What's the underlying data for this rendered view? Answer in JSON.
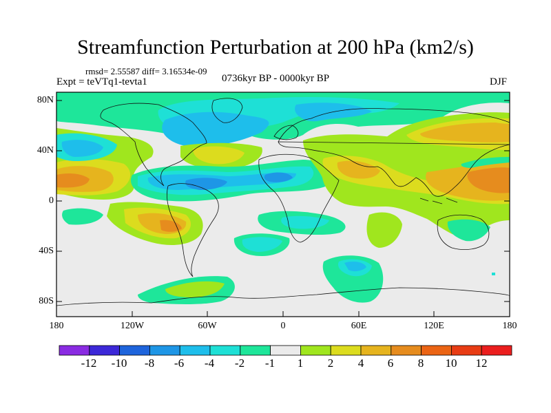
{
  "title": "Streamfunction Perturbation at 200 hPa (km2/s)",
  "stats": "rmsd= 2.55587 diff= 3.16534e-09",
  "expt": "Expt = teVTq1-tevta1",
  "period": "0736kyr BP - 0000kyr BP",
  "season": "DJF",
  "lat_labels": [
    "80N",
    "40N",
    "0",
    "40S",
    "80S"
  ],
  "lon_labels": [
    "180",
    "120W",
    "60W",
    "0",
    "60E",
    "120E",
    "180"
  ],
  "colorbar": {
    "labels": [
      "-12",
      "-10",
      "-8",
      "-6",
      "-4",
      "-2",
      "-1",
      "1",
      "2",
      "4",
      "6",
      "8",
      "10",
      "12"
    ],
    "colors": [
      "#8a2be2",
      "#3c28d8",
      "#1e64dc",
      "#1e96e6",
      "#1ebeeb",
      "#1ee0d6",
      "#1ee69a",
      "#ebebeb",
      "#a0e61e",
      "#dcdc1e",
      "#e6b41e",
      "#e68c1e",
      "#eb6414",
      "#e83c14",
      "#eb1e1e"
    ]
  },
  "palette": {
    "neutral": "#ebebeb",
    "g1": "#1ee69a",
    "g2": "#1ee0d6",
    "b1": "#1ebeeb",
    "b2": "#1e96e6",
    "b3": "#1e64dc",
    "y1": "#a0e61e",
    "y2": "#dcdc1e",
    "o1": "#e6b41e",
    "o2": "#e68c1e",
    "r1": "#eb6414"
  }
}
